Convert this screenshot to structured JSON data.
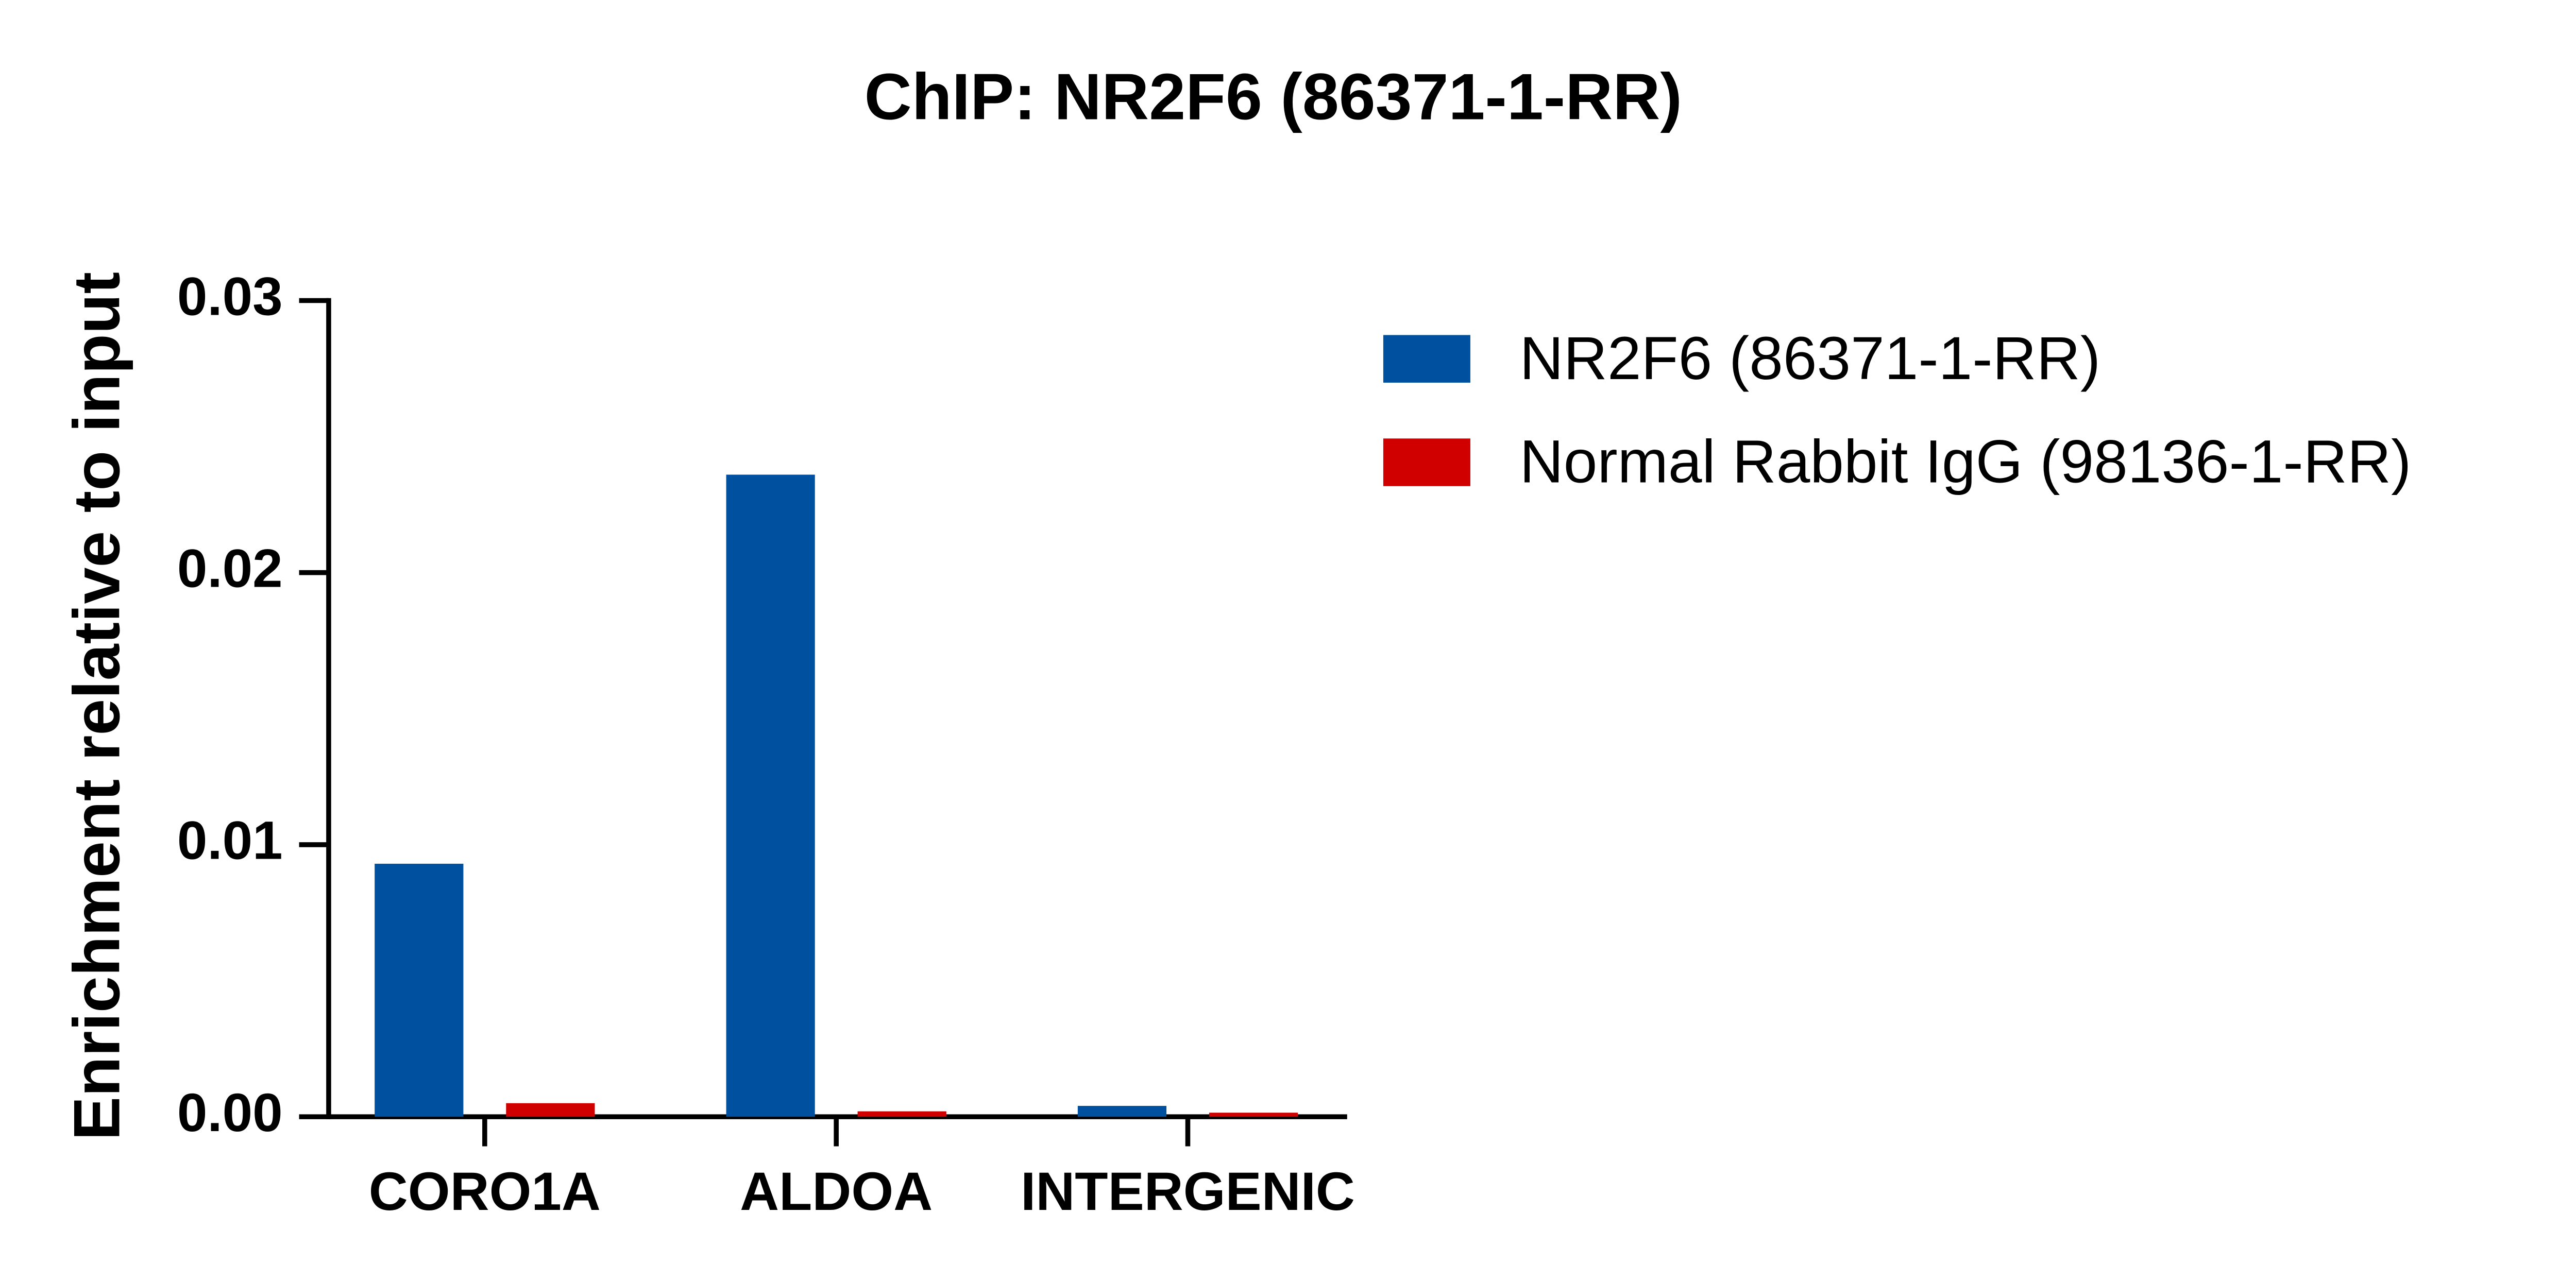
{
  "chart_data": {
    "type": "bar",
    "title": "ChIP: NR2F6 (86371-1-RR)",
    "y_label": "Enrichment relative to input",
    "categories": [
      "CORO1A",
      "ALDOA",
      "INTERGENIC"
    ],
    "series": [
      {
        "name": "NR2F6 (86371-1-RR)",
        "color": "#0050a0",
        "values": [
          0.0093,
          0.0236,
          0.0004
        ]
      },
      {
        "name": "Normal Rabbit IgG (98136-1-RR)",
        "color": "#d00000",
        "values": [
          0.0005,
          0.0002,
          0.00015
        ]
      }
    ],
    "ylim": [
      0,
      0.03
    ],
    "yticks": [
      {
        "value": 0,
        "label": "0.00"
      },
      0.01,
      0.02,
      0.03
    ],
    "legend": "right"
  }
}
